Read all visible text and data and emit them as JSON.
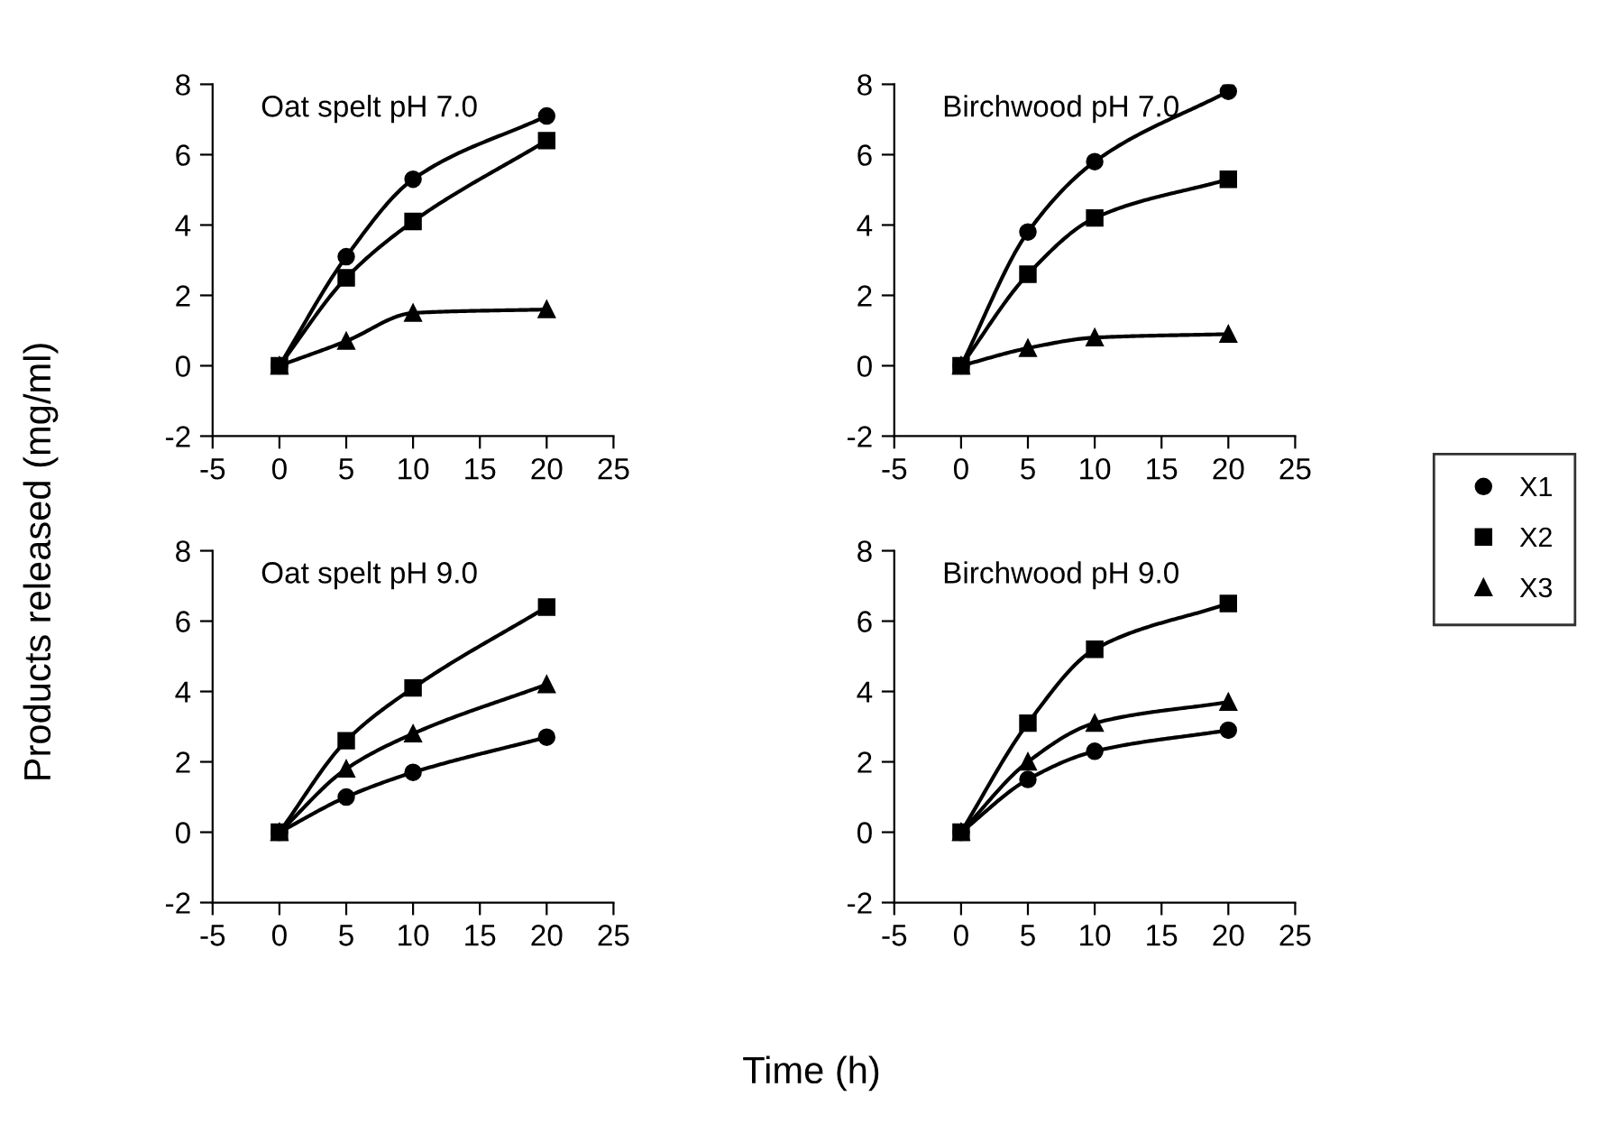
{
  "chart_data": [
    {
      "type": "line",
      "title": "Oat spelt pH 7.0",
      "ylabel": "Products released (mg/ml)",
      "x": [
        0,
        5,
        10,
        20
      ],
      "xlim": [
        -5,
        25
      ],
      "xticks": [
        -5,
        0,
        5,
        10,
        15,
        20,
        25
      ],
      "ylim": [
        -2,
        8
      ],
      "yticks": [
        -2,
        0,
        2,
        4,
        6,
        8
      ],
      "grid": false,
      "legend": "right",
      "series": [
        {
          "name": "X1",
          "color": "#000000",
          "marker": "circle",
          "values": [
            0,
            3.1,
            5.3,
            7.1
          ]
        },
        {
          "name": "X2",
          "color": "#000000",
          "marker": "square",
          "values": [
            0,
            2.5,
            4.1,
            6.4
          ]
        },
        {
          "name": "X3",
          "color": "#000000",
          "marker": "triangle",
          "values": [
            0,
            0.7,
            1.5,
            1.6
          ]
        }
      ]
    },
    {
      "type": "line",
      "title": "Birchwood pH 7.0",
      "x": [
        0,
        5,
        10,
        20
      ],
      "xlim": [
        -5,
        25
      ],
      "xticks": [
        -5,
        0,
        5,
        10,
        15,
        20,
        25
      ],
      "ylim": [
        -2,
        8
      ],
      "yticks": [
        -2,
        0,
        2,
        4,
        6,
        8
      ],
      "grid": false,
      "series": [
        {
          "color": "#000000",
          "marker": "circle",
          "values": [
            0,
            3.8,
            5.8,
            7.8
          ]
        },
        {
          "color": "#000000",
          "marker": "square",
          "values": [
            0,
            2.6,
            4.2,
            5.3
          ]
        },
        {
          "color": "#000000",
          "marker": "triangle",
          "values": [
            0,
            0.5,
            0.8,
            0.9
          ]
        }
      ]
    },
    {
      "type": "line",
      "title": "Oat spelt pH 9.0",
      "xlabel": "Time (h)",
      "x": [
        0,
        5,
        10,
        20
      ],
      "xlim": [
        -5,
        25
      ],
      "xticks": [
        -5,
        0,
        5,
        10,
        15,
        20,
        25
      ],
      "ylim": [
        -2,
        8
      ],
      "yticks": [
        -2,
        0,
        2,
        4,
        6,
        8
      ],
      "grid": false,
      "series": [
        {
          "color": "#000000",
          "marker": "circle",
          "values": [
            0,
            1.0,
            1.7,
            2.7
          ]
        },
        {
          "color": "#000000",
          "marker": "square",
          "values": [
            0,
            2.6,
            4.1,
            6.4
          ]
        },
        {
          "color": "#000000",
          "marker": "triangle",
          "values": [
            0,
            1.8,
            2.8,
            4.2
          ]
        }
      ]
    },
    {
      "type": "line",
      "title": "Birchwood pH 9.0",
      "x": [
        0,
        5,
        10,
        20
      ],
      "xlim": [
        -5,
        25
      ],
      "xticks": [
        -5,
        0,
        5,
        10,
        15,
        20,
        25
      ],
      "ylim": [
        -2,
        8
      ],
      "yticks": [
        -2,
        0,
        2,
        4,
        6,
        8
      ],
      "grid": false,
      "series": [
        {
          "color": "#000000",
          "marker": "circle",
          "values": [
            0,
            1.5,
            2.3,
            2.9
          ]
        },
        {
          "color": "#000000",
          "marker": "square",
          "values": [
            0,
            3.1,
            5.2,
            6.5
          ]
        },
        {
          "color": "#000000",
          "marker": "triangle",
          "values": [
            0,
            2.0,
            3.1,
            3.7
          ]
        }
      ]
    }
  ]
}
